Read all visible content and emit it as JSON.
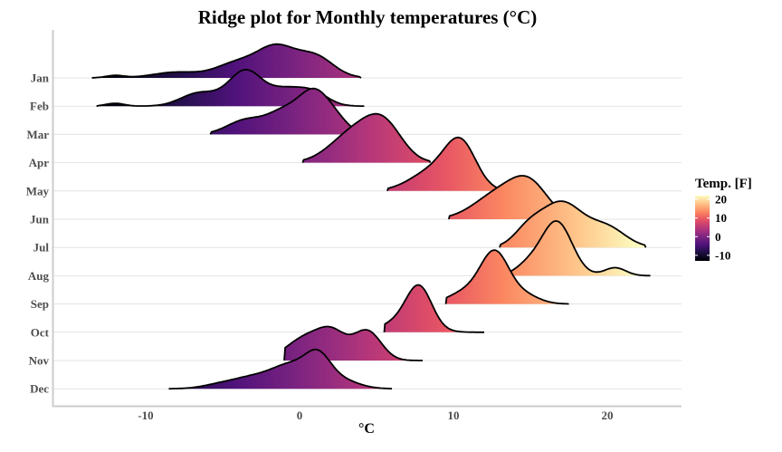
{
  "chart_data": {
    "type": "ridgeline",
    "title": "Ridge plot for Monthly temperatures (°C)",
    "xlabel": "°C",
    "ylabel": "",
    "xlim": [
      -16.5,
      25.5
    ],
    "x_ticks": [
      -10,
      0,
      10,
      20
    ],
    "grid": "horizontal major lines only",
    "colormap": "magma",
    "legend": {
      "title": "Temp. [F]",
      "placement": "right",
      "ticks": [
        20,
        10,
        0,
        -10
      ],
      "range": [
        -13,
        22
      ]
    },
    "categories": [
      "Jan",
      "Feb",
      "Mar",
      "Apr",
      "May",
      "Jun",
      "Jul",
      "Aug",
      "Sep",
      "Oct",
      "Nov",
      "Dec"
    ],
    "series": [
      {
        "name": "Jan",
        "x_range": [
          -13.5,
          4
        ],
        "components": [
          [
            -12,
            0.6,
            0.05
          ],
          [
            -8,
            1.5,
            0.12
          ],
          [
            -4,
            1.4,
            0.32
          ],
          [
            -1.5,
            1.2,
            0.6
          ],
          [
            1,
            1.2,
            0.45
          ]
        ]
      },
      {
        "name": "Feb",
        "x_range": [
          -13.2,
          4.2
        ],
        "components": [
          [
            -12,
            0.6,
            0.06
          ],
          [
            -6.5,
            1.2,
            0.28
          ],
          [
            -3.5,
            1.1,
            0.75
          ],
          [
            -1,
            1.0,
            0.3
          ],
          [
            0.8,
            1.0,
            0.3
          ]
        ]
      },
      {
        "name": "Mar",
        "x_range": [
          -5.8,
          4.5
        ],
        "components": [
          [
            -3.5,
            1.2,
            0.3
          ],
          [
            -1,
            1.1,
            0.45
          ],
          [
            1,
            1.0,
            0.85
          ],
          [
            2.5,
            0.8,
            0.2
          ]
        ]
      },
      {
        "name": "Apr",
        "x_range": [
          0.2,
          8.5
        ],
        "components": [
          [
            3.5,
            1.5,
            0.62
          ],
          [
            5.5,
            1.2,
            0.72
          ]
        ]
      },
      {
        "name": "May",
        "x_range": [
          5.7,
          14
        ],
        "components": [
          [
            8.8,
            1.5,
            0.45
          ],
          [
            10.5,
            1.0,
            0.88
          ]
        ]
      },
      {
        "name": "Jun",
        "x_range": [
          9.7,
          16.5
        ],
        "components": [
          [
            13,
            1.6,
            0.55
          ],
          [
            15,
            1.2,
            0.62
          ]
        ]
      },
      {
        "name": "Jul",
        "x_range": [
          13,
          22.5
        ],
        "components": [
          [
            14.8,
            0.9,
            0.3
          ],
          [
            17,
            1.4,
            0.95
          ],
          [
            20,
            1.2,
            0.4
          ]
        ]
      },
      {
        "name": "Aug",
        "x_range": [
          13.5,
          22.8
        ],
        "components": [
          [
            14.8,
            0.8,
            0.2
          ],
          [
            16.7,
            1.0,
            1.15
          ],
          [
            20.5,
            0.7,
            0.17
          ]
        ]
      },
      {
        "name": "Sep",
        "x_range": [
          9.5,
          17.5
        ],
        "components": [
          [
            11,
            1.2,
            0.28
          ],
          [
            12.7,
            0.9,
            1.0
          ],
          [
            14.5,
            1.0,
            0.2
          ]
        ]
      },
      {
        "name": "Oct",
        "x_range": [
          5.5,
          12
        ],
        "components": [
          [
            7,
            1.3,
            0.3
          ],
          [
            7.8,
            0.8,
            0.75
          ]
        ]
      },
      {
        "name": "Nov",
        "x_range": [
          -1,
          8
        ],
        "components": [
          [
            0.5,
            1.3,
            0.5
          ],
          [
            2.2,
            0.9,
            0.45
          ],
          [
            4.4,
            0.9,
            0.62
          ]
        ]
      },
      {
        "name": "Dec",
        "x_range": [
          -8.5,
          6
        ],
        "components": [
          [
            -5,
            1.2,
            0.1
          ],
          [
            -3,
            1.2,
            0.2
          ],
          [
            -0.5,
            1.3,
            0.5
          ],
          [
            1.2,
            0.8,
            0.5
          ],
          [
            2.5,
            1.2,
            0.2
          ]
        ]
      }
    ]
  }
}
